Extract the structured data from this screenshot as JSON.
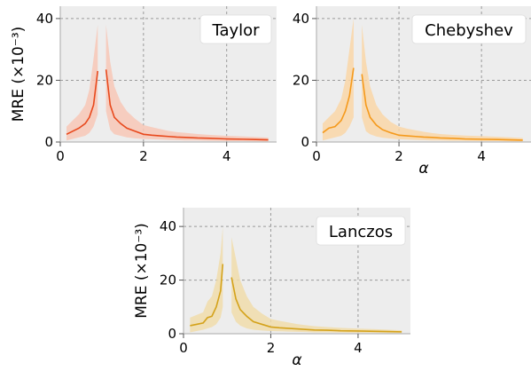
{
  "chart_data": [
    {
      "type": "line",
      "label": "Taylor",
      "color": "#e8491d",
      "band_color": "#f7c7b6",
      "ylabel": "MRE (×10⁻³)",
      "xlabel": "",
      "xlim": [
        0,
        5.2
      ],
      "ylim": [
        0,
        44
      ],
      "xticks": [
        "0",
        "2",
        "4"
      ],
      "yticks": [
        "0",
        "20",
        "40"
      ],
      "grid": true,
      "legend": "top-right",
      "series": [
        {
          "x": [
            0.15,
            0.3,
            0.45,
            0.6,
            0.7,
            0.8,
            0.9
          ],
          "y": [
            2.5,
            3.5,
            4.5,
            6,
            8,
            12,
            23
          ],
          "lower": [
            0.5,
            1,
            1.5,
            2,
            3,
            5,
            9
          ],
          "upper": [
            5,
            7,
            9,
            12,
            17,
            27,
            38
          ]
        },
        {
          "x": [
            1.1,
            1.2,
            1.3,
            1.45,
            1.6,
            1.8,
            2.0,
            2.2,
            2.4,
            2.6,
            2.8,
            3.0,
            3.3,
            3.6,
            4.0,
            4.4,
            4.7,
            5.0
          ],
          "y": [
            23.5,
            12,
            8,
            6,
            4.5,
            3.5,
            2.5,
            2.2,
            2,
            1.8,
            1.6,
            1.5,
            1.3,
            1.2,
            1,
            0.9,
            0.8,
            0.7
          ],
          "lower": [
            10,
            4,
            2.5,
            2,
            1.5,
            1.2,
            1,
            0.9,
            0.8,
            0.7,
            0.6,
            0.5,
            0.5,
            0.4,
            0.3,
            0.3,
            0.2,
            0.2
          ],
          "upper": [
            38,
            26,
            18,
            13,
            10,
            7.5,
            5.5,
            4.8,
            4.2,
            3.6,
            3.2,
            3,
            2.6,
            2.3,
            2,
            1.8,
            1.6,
            1.4
          ]
        }
      ]
    },
    {
      "type": "line",
      "label": "Chebyshev",
      "color": "#f59a1c",
      "band_color": "#f9d6a7",
      "ylabel": "",
      "xlabel": "α",
      "xlim": [
        0,
        5.2
      ],
      "ylim": [
        0,
        44
      ],
      "xticks": [
        "0",
        "2",
        "4"
      ],
      "yticks": [
        "0",
        "20",
        "40"
      ],
      "grid": true,
      "legend": "top-right",
      "series": [
        {
          "x": [
            0.15,
            0.3,
            0.45,
            0.6,
            0.7,
            0.8,
            0.9
          ],
          "y": [
            3,
            4.5,
            5,
            7,
            10,
            15,
            24
          ],
          "lower": [
            0.5,
            1,
            1.5,
            2,
            3,
            5,
            8
          ],
          "upper": [
            6,
            8,
            10,
            14,
            20,
            30,
            40
          ]
        },
        {
          "x": [
            1.1,
            1.2,
            1.3,
            1.45,
            1.6,
            1.8,
            2.0,
            2.2,
            2.4,
            2.6,
            2.8,
            3.0,
            3.3,
            3.6,
            4.0,
            4.4,
            4.7,
            5.0
          ],
          "y": [
            22,
            12,
            8,
            5.5,
            4,
            3,
            2.2,
            2,
            1.8,
            1.6,
            1.5,
            1.3,
            1.2,
            1,
            0.9,
            0.8,
            0.7,
            0.6
          ],
          "lower": [
            8,
            3.5,
            2.5,
            1.8,
            1.4,
            1.1,
            0.9,
            0.8,
            0.7,
            0.6,
            0.5,
            0.5,
            0.4,
            0.4,
            0.3,
            0.3,
            0.2,
            0.2
          ],
          "upper": [
            38,
            26,
            18,
            12,
            9,
            6.5,
            5,
            4.3,
            3.8,
            3.3,
            2.9,
            2.6,
            2.3,
            2.1,
            1.9,
            1.7,
            1.5,
            1.3
          ]
        }
      ]
    },
    {
      "type": "line",
      "label": "Lanczos",
      "color": "#d4a21a",
      "band_color": "#f0dcaa",
      "ylabel": "MRE (×10⁻³)",
      "xlabel": "α",
      "xlim": [
        0,
        5.2
      ],
      "ylim": [
        0,
        47
      ],
      "xticks": [
        "0",
        "2",
        "4"
      ],
      "yticks": [
        "0",
        "20",
        "40"
      ],
      "grid": true,
      "legend": "top-right",
      "series": [
        {
          "x": [
            0.15,
            0.3,
            0.45,
            0.55,
            0.65,
            0.75,
            0.85,
            0.9
          ],
          "y": [
            3,
            3.5,
            4,
            6,
            6.5,
            10,
            16,
            26
          ],
          "lower": [
            0.5,
            1,
            1.5,
            2,
            2.5,
            3.5,
            6,
            10
          ],
          "upper": [
            6,
            7,
            8,
            12,
            14,
            20,
            30,
            40
          ]
        },
        {
          "x": [
            1.1,
            1.2,
            1.3,
            1.45,
            1.6,
            1.8,
            2.0,
            2.2,
            2.4,
            2.6,
            2.8,
            3.0,
            3.3,
            3.6,
            4.0,
            4.4,
            4.7,
            5.0
          ],
          "y": [
            21,
            13,
            9,
            6.5,
            4.5,
            3.5,
            2.5,
            2.2,
            2,
            1.8,
            1.6,
            1.4,
            1.3,
            1.1,
            1,
            0.9,
            0.8,
            0.7
          ],
          "lower": [
            8,
            4.5,
            3,
            2,
            1.5,
            1.2,
            1,
            0.9,
            0.8,
            0.7,
            0.6,
            0.5,
            0.5,
            0.4,
            0.3,
            0.3,
            0.2,
            0.2
          ],
          "upper": [
            36,
            28,
            20,
            14,
            10,
            7.5,
            5.5,
            4.8,
            4.2,
            3.6,
            3.2,
            2.8,
            2.5,
            2.2,
            1.9,
            1.7,
            1.5,
            1.3
          ]
        }
      ]
    }
  ]
}
